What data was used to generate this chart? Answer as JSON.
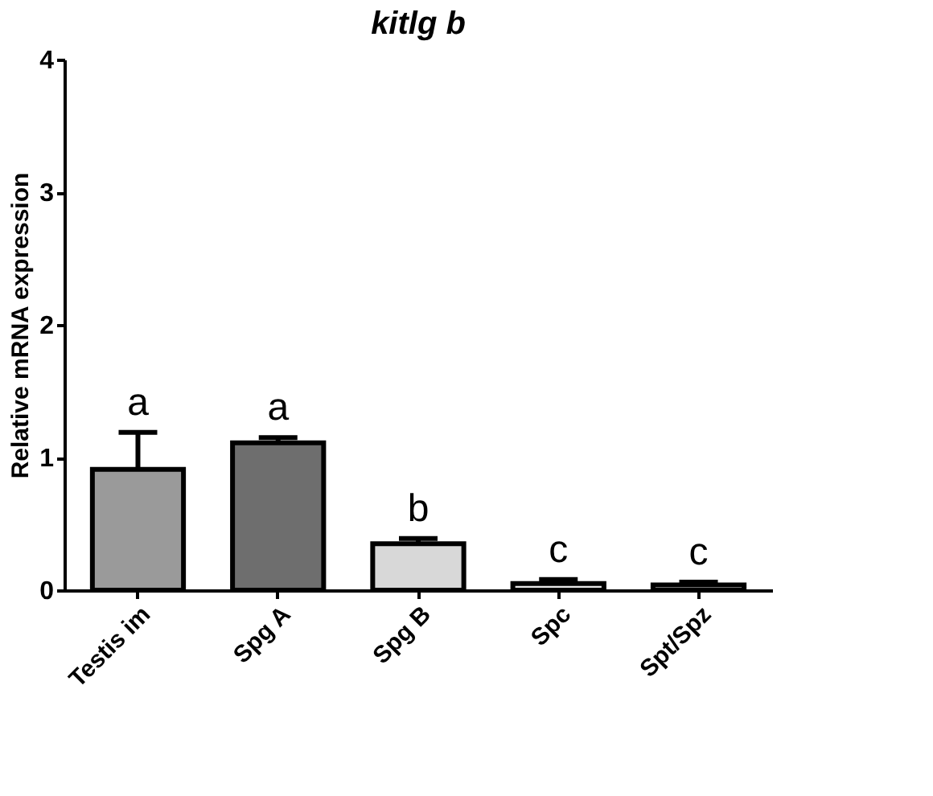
{
  "chart_data": {
    "type": "bar",
    "title": "kitlg  b",
    "ylabel": "Relative mRNA expression",
    "categories": [
      "Testis im",
      "Spg A",
      "Spg B",
      "Spc",
      "Spt/Spz"
    ],
    "values": [
      0.91,
      1.11,
      0.35,
      0.05,
      0.04
    ],
    "errors": [
      [
        0.91,
        1.19
      ],
      [
        1.11,
        1.15
      ],
      [
        0.35,
        0.39
      ],
      [
        0.05,
        0.08
      ],
      [
        0.04,
        0.06
      ]
    ],
    "colors": [
      "#9a9a9a",
      "#6e6e6e",
      "#d8d8d8",
      "#e8e8e8",
      "#e8e8e8"
    ],
    "ylim": [
      0,
      4
    ],
    "yticks": [
      0,
      1,
      2,
      3,
      4
    ],
    "grid": false,
    "annotations": [
      {
        "text": "a",
        "x": "Testis im",
        "y": 1.19
      },
      {
        "text": "a",
        "x": "Spg A",
        "y": 1.15
      },
      {
        "text": "b",
        "x": "Spg B",
        "y": 0.39
      },
      {
        "text": "c",
        "x": "Spc",
        "y": 0.08
      },
      {
        "text": "c",
        "x": "Spt/Spz",
        "y": 0.06
      }
    ]
  }
}
